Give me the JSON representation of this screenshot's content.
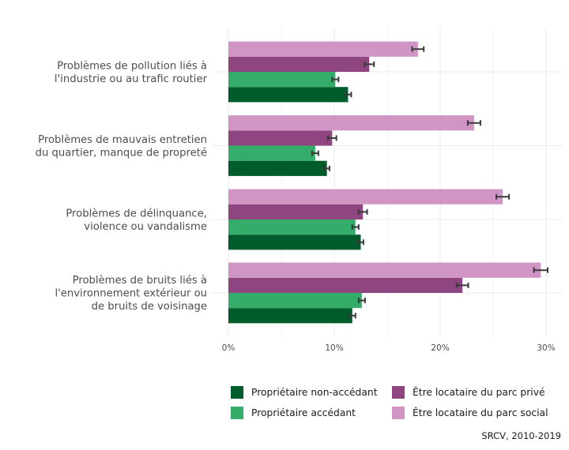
{
  "chart_data": {
    "type": "bar",
    "orientation": "horizontal",
    "grouped": true,
    "categories": [
      [
        "Problèmes de pollution liés à",
        "l'industrie ou au trafic routier"
      ],
      [
        "Problèmes de mauvais entretien",
        "du quartier, manque de propreté"
      ],
      [
        "Problèmes de délinquance,",
        "violence ou vandalisme"
      ],
      [
        "Problèmes de bruits liés à",
        "l'environnement extérieur ou",
        "de bruits de voisinage"
      ]
    ],
    "series": [
      {
        "name": "Propriétaire non-accédant",
        "color": "#005C2A",
        "values": [
          11.3,
          9.3,
          12.5,
          11.7
        ],
        "error": [
          0.3,
          0.25,
          0.25,
          0.3
        ]
      },
      {
        "name": "Propriétaire accédant",
        "color": "#35AD6A",
        "values": [
          10.1,
          8.2,
          12.0,
          12.6
        ],
        "error": [
          0.3,
          0.3,
          0.3,
          0.3
        ]
      },
      {
        "name": "Être locataire du parc privé",
        "color": "#8E4580",
        "values": [
          13.3,
          9.8,
          12.7,
          22.1
        ],
        "error": [
          0.45,
          0.4,
          0.4,
          0.55
        ]
      },
      {
        "name": "Être locataire du parc social",
        "color": "#D095C4",
        "values": [
          17.9,
          23.2,
          25.9,
          29.5
        ],
        "error": [
          0.55,
          0.6,
          0.6,
          0.65
        ]
      }
    ],
    "xlim": [
      0,
      31.5
    ],
    "xticks": [
      0,
      10,
      20,
      30
    ],
    "xtick_labels": [
      "0%",
      "10%",
      "20%",
      "30%"
    ],
    "xlabel": "",
    "ylabel": "",
    "grid": true,
    "legend_position": "bottom",
    "caption": "SRCV, 2010-2019",
    "title": ""
  },
  "legend": {
    "items": [
      {
        "label": "Propriétaire non-accédant",
        "color": "#005C2A"
      },
      {
        "label": "Être locataire du parc privé",
        "color": "#8E4580"
      },
      {
        "label": "Propriétaire accédant",
        "color": "#35AD6A"
      },
      {
        "label": "Être locataire du parc social",
        "color": "#D095C4"
      }
    ]
  },
  "caption": "SRCV, 2010-2019"
}
